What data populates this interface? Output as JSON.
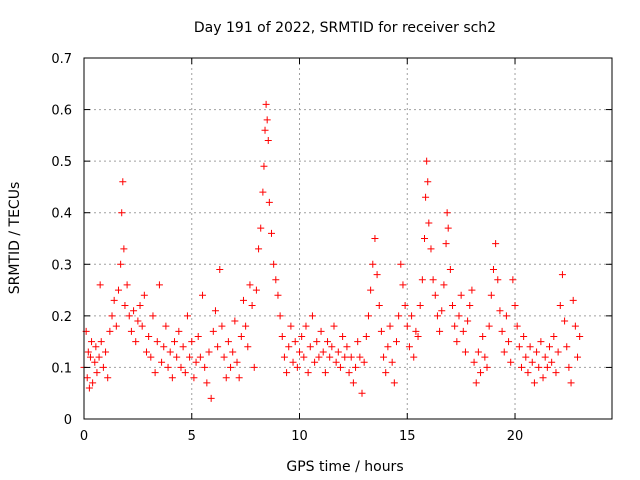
{
  "chart_data": {
    "type": "scatter",
    "title": "Day 191 of 2022, SRMTID for receiver sch2",
    "xlabel": "GPS time / hours",
    "ylabel": "SRMTID / TECUs",
    "xlim": [
      0,
      24.5
    ],
    "ylim": [
      0,
      0.7
    ],
    "xticks": [
      0,
      5,
      10,
      15,
      20
    ],
    "xtick_labels": [
      "0",
      "5",
      "10",
      "15",
      "20"
    ],
    "yticks": [
      0,
      0.1,
      0.2,
      0.3,
      0.4,
      0.5,
      0.6,
      0.7
    ],
    "ytick_labels": [
      "0",
      "0.1",
      "0.2",
      "0.3",
      "0.4",
      "0.5",
      "0.6",
      "0.7"
    ],
    "grid": true,
    "marker": "+",
    "color": "#ff0000",
    "series": [
      {
        "name": "sch2",
        "points": [
          [
            0.0,
            0.1
          ],
          [
            0.1,
            0.17
          ],
          [
            0.15,
            0.08
          ],
          [
            0.2,
            0.13
          ],
          [
            0.25,
            0.06
          ],
          [
            0.3,
            0.12
          ],
          [
            0.35,
            0.15
          ],
          [
            0.4,
            0.07
          ],
          [
            0.5,
            0.11
          ],
          [
            0.55,
            0.14
          ],
          [
            0.6,
            0.09
          ],
          [
            0.7,
            0.12
          ],
          [
            0.75,
            0.26
          ],
          [
            0.8,
            0.15
          ],
          [
            0.9,
            0.1
          ],
          [
            1.0,
            0.13
          ],
          [
            1.1,
            0.08
          ],
          [
            1.2,
            0.17
          ],
          [
            1.3,
            0.2
          ],
          [
            1.4,
            0.23
          ],
          [
            1.5,
            0.18
          ],
          [
            1.6,
            0.25
          ],
          [
            1.7,
            0.3
          ],
          [
            1.75,
            0.4
          ],
          [
            1.8,
            0.46
          ],
          [
            1.85,
            0.33
          ],
          [
            1.9,
            0.22
          ],
          [
            2.0,
            0.26
          ],
          [
            2.1,
            0.2
          ],
          [
            2.2,
            0.17
          ],
          [
            2.3,
            0.21
          ],
          [
            2.4,
            0.15
          ],
          [
            2.5,
            0.19
          ],
          [
            2.6,
            0.22
          ],
          [
            2.7,
            0.18
          ],
          [
            2.8,
            0.24
          ],
          [
            2.9,
            0.13
          ],
          [
            3.0,
            0.16
          ],
          [
            3.1,
            0.12
          ],
          [
            3.2,
            0.2
          ],
          [
            3.3,
            0.09
          ],
          [
            3.4,
            0.15
          ],
          [
            3.5,
            0.26
          ],
          [
            3.6,
            0.11
          ],
          [
            3.7,
            0.14
          ],
          [
            3.8,
            0.18
          ],
          [
            3.9,
            0.1
          ],
          [
            4.0,
            0.13
          ],
          [
            4.1,
            0.08
          ],
          [
            4.2,
            0.15
          ],
          [
            4.3,
            0.12
          ],
          [
            4.4,
            0.17
          ],
          [
            4.5,
            0.1
          ],
          [
            4.6,
            0.14
          ],
          [
            4.7,
            0.09
          ],
          [
            4.8,
            0.2
          ],
          [
            4.9,
            0.12
          ],
          [
            5.0,
            0.15
          ],
          [
            5.1,
            0.08
          ],
          [
            5.2,
            0.11
          ],
          [
            5.3,
            0.16
          ],
          [
            5.4,
            0.12
          ],
          [
            5.5,
            0.24
          ],
          [
            5.6,
            0.1
          ],
          [
            5.7,
            0.07
          ],
          [
            5.8,
            0.13
          ],
          [
            5.9,
            0.04
          ],
          [
            6.0,
            0.17
          ],
          [
            6.1,
            0.21
          ],
          [
            6.2,
            0.14
          ],
          [
            6.3,
            0.29
          ],
          [
            6.4,
            0.18
          ],
          [
            6.5,
            0.12
          ],
          [
            6.6,
            0.08
          ],
          [
            6.7,
            0.15
          ],
          [
            6.8,
            0.1
          ],
          [
            6.9,
            0.13
          ],
          [
            7.0,
            0.19
          ],
          [
            7.1,
            0.11
          ],
          [
            7.2,
            0.08
          ],
          [
            7.3,
            0.16
          ],
          [
            7.4,
            0.23
          ],
          [
            7.5,
            0.18
          ],
          [
            7.6,
            0.14
          ],
          [
            7.7,
            0.26
          ],
          [
            7.8,
            0.22
          ],
          [
            7.9,
            0.1
          ],
          [
            8.0,
            0.25
          ],
          [
            8.1,
            0.33
          ],
          [
            8.2,
            0.37
          ],
          [
            8.3,
            0.44
          ],
          [
            8.35,
            0.49
          ],
          [
            8.4,
            0.56
          ],
          [
            8.45,
            0.61
          ],
          [
            8.5,
            0.58
          ],
          [
            8.55,
            0.54
          ],
          [
            8.6,
            0.42
          ],
          [
            8.7,
            0.36
          ],
          [
            8.8,
            0.3
          ],
          [
            8.9,
            0.27
          ],
          [
            9.0,
            0.24
          ],
          [
            9.1,
            0.2
          ],
          [
            9.2,
            0.16
          ],
          [
            9.3,
            0.12
          ],
          [
            9.4,
            0.09
          ],
          [
            9.5,
            0.14
          ],
          [
            9.6,
            0.18
          ],
          [
            9.7,
            0.11
          ],
          [
            9.8,
            0.15
          ],
          [
            9.9,
            0.1
          ],
          [
            10.0,
            0.13
          ],
          [
            10.1,
            0.16
          ],
          [
            10.2,
            0.12
          ],
          [
            10.3,
            0.18
          ],
          [
            10.4,
            0.09
          ],
          [
            10.5,
            0.14
          ],
          [
            10.6,
            0.2
          ],
          [
            10.7,
            0.11
          ],
          [
            10.8,
            0.15
          ],
          [
            10.9,
            0.12
          ],
          [
            11.0,
            0.17
          ],
          [
            11.1,
            0.13
          ],
          [
            11.2,
            0.09
          ],
          [
            11.3,
            0.15
          ],
          [
            11.4,
            0.12
          ],
          [
            11.5,
            0.14
          ],
          [
            11.6,
            0.18
          ],
          [
            11.7,
            0.11
          ],
          [
            11.8,
            0.13
          ],
          [
            11.9,
            0.1
          ],
          [
            12.0,
            0.16
          ],
          [
            12.1,
            0.12
          ],
          [
            12.2,
            0.14
          ],
          [
            12.3,
            0.09
          ],
          [
            12.4,
            0.12
          ],
          [
            12.5,
            0.07
          ],
          [
            12.6,
            0.1
          ],
          [
            12.7,
            0.15
          ],
          [
            12.8,
            0.12
          ],
          [
            12.9,
            0.05
          ],
          [
            13.0,
            0.11
          ],
          [
            13.1,
            0.16
          ],
          [
            13.2,
            0.2
          ],
          [
            13.3,
            0.25
          ],
          [
            13.4,
            0.3
          ],
          [
            13.5,
            0.35
          ],
          [
            13.6,
            0.28
          ],
          [
            13.7,
            0.22
          ],
          [
            13.8,
            0.17
          ],
          [
            13.9,
            0.12
          ],
          [
            14.0,
            0.09
          ],
          [
            14.1,
            0.14
          ],
          [
            14.2,
            0.18
          ],
          [
            14.3,
            0.11
          ],
          [
            14.4,
            0.07
          ],
          [
            14.5,
            0.15
          ],
          [
            14.6,
            0.2
          ],
          [
            14.7,
            0.3
          ],
          [
            14.8,
            0.26
          ],
          [
            14.9,
            0.22
          ],
          [
            15.0,
            0.18
          ],
          [
            15.1,
            0.14
          ],
          [
            15.2,
            0.2
          ],
          [
            15.3,
            0.12
          ],
          [
            15.4,
            0.17
          ],
          [
            15.5,
            0.16
          ],
          [
            15.6,
            0.22
          ],
          [
            15.7,
            0.27
          ],
          [
            15.8,
            0.35
          ],
          [
            15.85,
            0.43
          ],
          [
            15.9,
            0.5
          ],
          [
            15.95,
            0.46
          ],
          [
            16.0,
            0.38
          ],
          [
            16.1,
            0.33
          ],
          [
            16.2,
            0.27
          ],
          [
            16.3,
            0.24
          ],
          [
            16.4,
            0.2
          ],
          [
            16.5,
            0.17
          ],
          [
            16.6,
            0.21
          ],
          [
            16.7,
            0.26
          ],
          [
            16.8,
            0.34
          ],
          [
            16.85,
            0.4
          ],
          [
            16.9,
            0.37
          ],
          [
            17.0,
            0.29
          ],
          [
            17.1,
            0.22
          ],
          [
            17.2,
            0.18
          ],
          [
            17.3,
            0.15
          ],
          [
            17.4,
            0.2
          ],
          [
            17.5,
            0.24
          ],
          [
            17.6,
            0.17
          ],
          [
            17.7,
            0.13
          ],
          [
            17.8,
            0.19
          ],
          [
            17.9,
            0.22
          ],
          [
            18.0,
            0.25
          ],
          [
            18.1,
            0.11
          ],
          [
            18.2,
            0.07
          ],
          [
            18.3,
            0.13
          ],
          [
            18.4,
            0.09
          ],
          [
            18.5,
            0.16
          ],
          [
            18.6,
            0.12
          ],
          [
            18.7,
            0.1
          ],
          [
            18.8,
            0.18
          ],
          [
            18.9,
            0.24
          ],
          [
            19.0,
            0.29
          ],
          [
            19.1,
            0.34
          ],
          [
            19.2,
            0.27
          ],
          [
            19.3,
            0.21
          ],
          [
            19.4,
            0.17
          ],
          [
            19.5,
            0.13
          ],
          [
            19.6,
            0.2
          ],
          [
            19.7,
            0.15
          ],
          [
            19.8,
            0.11
          ],
          [
            19.9,
            0.27
          ],
          [
            20.0,
            0.22
          ],
          [
            20.1,
            0.18
          ],
          [
            20.2,
            0.14
          ],
          [
            20.3,
            0.1
          ],
          [
            20.4,
            0.16
          ],
          [
            20.5,
            0.12
          ],
          [
            20.6,
            0.09
          ],
          [
            20.7,
            0.14
          ],
          [
            20.8,
            0.11
          ],
          [
            20.9,
            0.07
          ],
          [
            21.0,
            0.13
          ],
          [
            21.1,
            0.1
          ],
          [
            21.2,
            0.15
          ],
          [
            21.3,
            0.08
          ],
          [
            21.4,
            0.12
          ],
          [
            21.5,
            0.1
          ],
          [
            21.6,
            0.14
          ],
          [
            21.7,
            0.11
          ],
          [
            21.8,
            0.16
          ],
          [
            21.9,
            0.09
          ],
          [
            22.0,
            0.13
          ],
          [
            22.1,
            0.22
          ],
          [
            22.2,
            0.28
          ],
          [
            22.3,
            0.19
          ],
          [
            22.4,
            0.14
          ],
          [
            22.5,
            0.1
          ],
          [
            22.6,
            0.07
          ],
          [
            22.7,
            0.23
          ],
          [
            22.8,
            0.18
          ],
          [
            22.9,
            0.12
          ],
          [
            23.0,
            0.16
          ]
        ]
      }
    ]
  }
}
